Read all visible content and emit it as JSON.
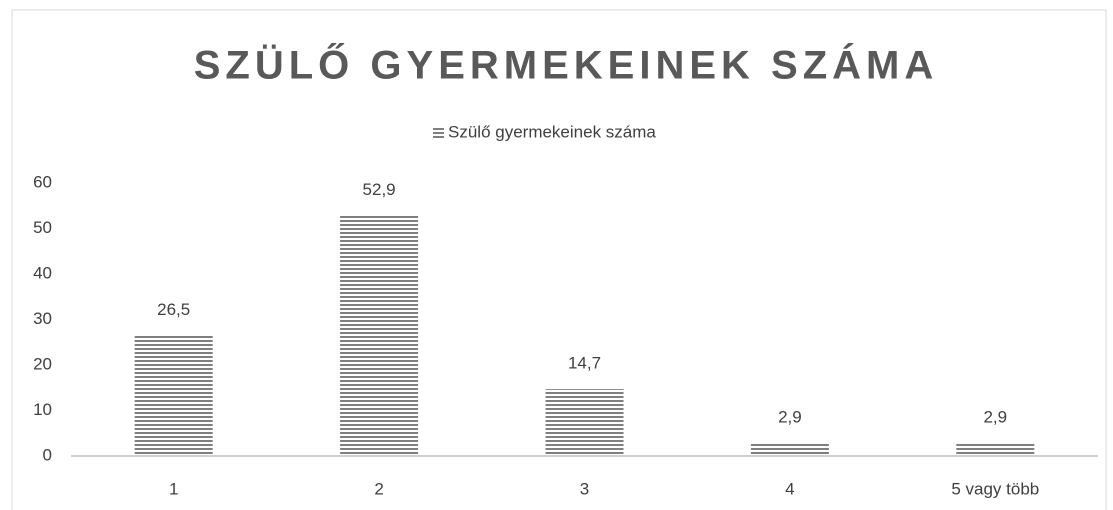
{
  "chart_data": {
    "type": "bar",
    "title": "SZÜLŐ GYERMEKEINEK SZÁMA",
    "categories": [
      "1",
      "2",
      "3",
      "4",
      "5 vagy több"
    ],
    "series": [
      {
        "name": "Szülő gyermekeinek száma",
        "color": "#7f7f7f",
        "values": [
          26.5,
          52.9,
          14.7,
          2.9,
          2.9
        ],
        "value_labels": [
          "26,5",
          "52,9",
          "14,7",
          "2,9",
          "2,9"
        ]
      }
    ],
    "ylim": [
      0,
      60
    ],
    "yticks": [
      0,
      10,
      20,
      30,
      40,
      50,
      60
    ],
    "grid": false,
    "legend": "top"
  }
}
